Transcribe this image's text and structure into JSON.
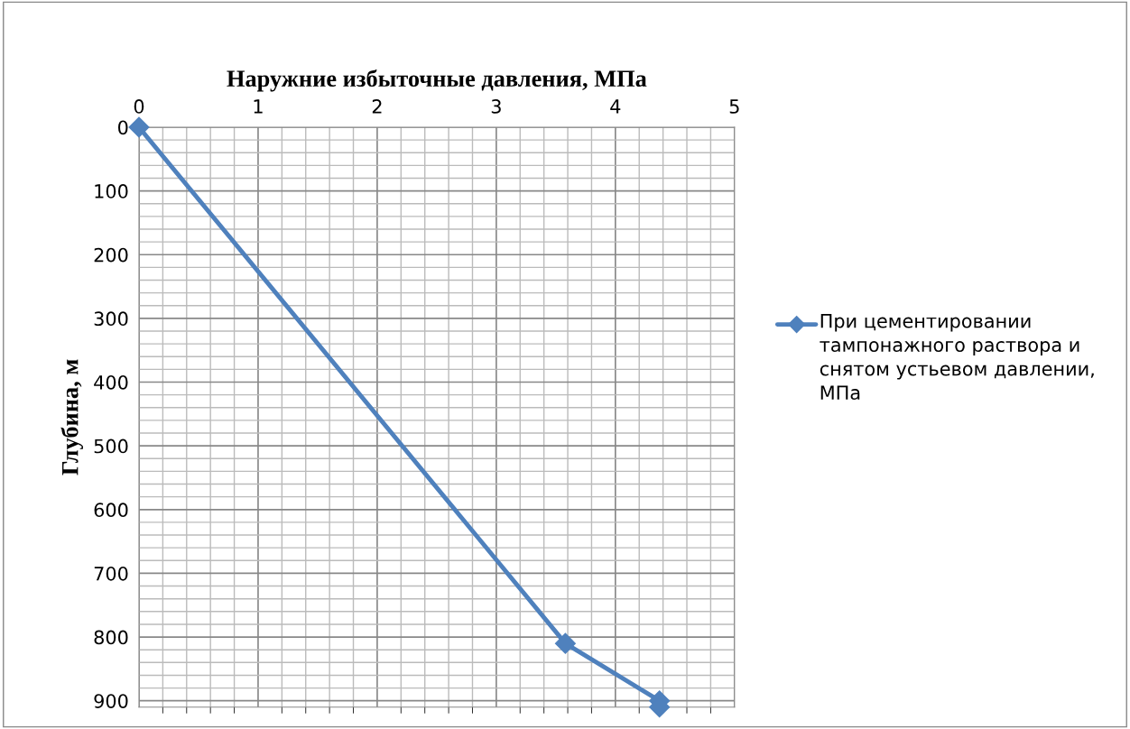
{
  "chart_data": {
    "type": "line",
    "xlabel": "Наружние избыточные давления, МПа",
    "ylabel": "Глубина, м",
    "x": [
      0,
      3.58,
      4.37,
      4.37
    ],
    "series": [
      {
        "name": "При цементировании тампонажного раствора и снятом устьевом давлении, МПа",
        "color": "#4f81bd",
        "values": [
          0,
          810,
          900,
          910
        ]
      }
    ],
    "xlim": [
      0,
      5
    ],
    "xticks": [
      0,
      1,
      2,
      3,
      4,
      5
    ],
    "ylim": [
      910,
      0
    ],
    "yticks": [
      0,
      100,
      200,
      300,
      400,
      500,
      600,
      700,
      800,
      900
    ],
    "grid": true,
    "legend": "right",
    "marker": "diamond",
    "line_style": "solid"
  }
}
